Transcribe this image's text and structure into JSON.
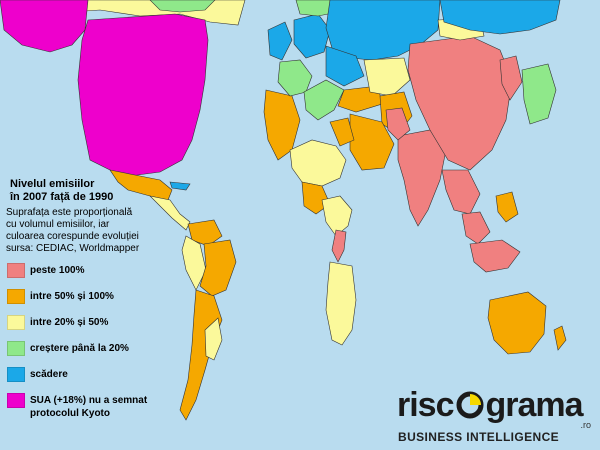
{
  "legend": {
    "title_line1": "Nivelul emisiilor",
    "title_line2": "în 2007 față de 1990",
    "desc_line1": "Suprafața este proporțională",
    "desc_line2": "cu volumul emisiilor, iar",
    "desc_line3": "culoarea corespunde evoluției",
    "desc_line4": "sursa: CEDIAC, Worldmapper",
    "items": [
      {
        "label": "peste 100%",
        "color": "#f08080"
      },
      {
        "label": "intre 50% și 100%",
        "color": "#f5a800"
      },
      {
        "label": "intre 20% și 50%",
        "color": "#fbf99b"
      },
      {
        "label": "creștere până la 20%",
        "color": "#8fe88a"
      },
      {
        "label": "scădere",
        "color": "#1ba8e8"
      },
      {
        "label": "SUA (+18%) nu a semnat",
        "label2": "protocolul Kyoto",
        "color": "#ee00cc"
      }
    ]
  },
  "logo": {
    "word_prefix": "risc",
    "word_suffix": "grama",
    "domain": ".ro",
    "tagline": "BUSINESS INTELLIGENCE",
    "accent": "#f5d800"
  },
  "colors": {
    "ocean": "#b9dcef",
    "usa": "#ee00cc",
    "above100": "#f08080",
    "r50_100": "#f5a800",
    "r20_50": "#fbf99b",
    "up20": "#8fe88a",
    "down": "#1ba8e8"
  }
}
